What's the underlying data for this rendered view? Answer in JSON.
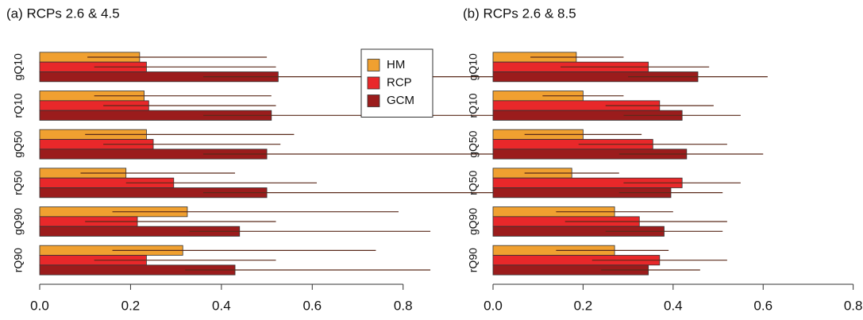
{
  "chart_data": [
    {
      "type": "bar",
      "orientation": "horizontal",
      "title": "(a) RCPs 2.6 & 4.5",
      "categories": [
        "gQ10",
        "rQ10",
        "gQ50",
        "rQ50",
        "gQ90",
        "rQ90"
      ],
      "series": [
        {
          "name": "HM",
          "color": "#f0a030",
          "values": [
            0.22,
            0.23,
            0.235,
            0.19,
            0.325,
            0.315
          ],
          "low": [
            0.105,
            0.12,
            0.1,
            0.09,
            0.16,
            0.16
          ],
          "high": [
            0.5,
            0.51,
            0.56,
            0.43,
            0.79,
            0.74
          ]
        },
        {
          "name": "RCP",
          "color": "#e8282a",
          "values": [
            0.235,
            0.24,
            0.25,
            0.295,
            0.215,
            0.235
          ],
          "low": [
            0.12,
            0.14,
            0.14,
            0.19,
            0.1,
            0.12
          ],
          "high": [
            0.52,
            0.52,
            0.53,
            0.61,
            0.52,
            0.52
          ]
        },
        {
          "name": "GCM",
          "color": "#9b1c1c",
          "values": [
            0.525,
            0.51,
            0.5,
            0.5,
            0.44,
            0.43
          ],
          "low": [
            0.36,
            0.36,
            0.36,
            0.36,
            0.33,
            0.32
          ],
          "high": [
            1.12,
            1.09,
            1.04,
            1.03,
            0.86,
            0.86
          ]
        }
      ],
      "error_color": "#5a2a1a",
      "xlim": [
        0,
        1.15
      ],
      "xticks": [
        {
          "value": 0,
          "label": "0.0"
        },
        {
          "value": 0.2,
          "label": "0.2"
        },
        {
          "value": 0.4,
          "label": "0.4"
        },
        {
          "value": 0.6,
          "label": "0.6"
        },
        {
          "value": 0.8,
          "label": "0.8"
        }
      ],
      "legend": "topright"
    },
    {
      "type": "bar",
      "orientation": "horizontal",
      "title": "(b) RCPs 2.6 & 8.5",
      "categories": [
        "gQ10",
        "rQ10",
        "gQ50",
        "rQ50",
        "gQ90",
        "rQ90"
      ],
      "series": [
        {
          "color": "#f0a030",
          "values": [
            0.185,
            0.2,
            0.2,
            0.175,
            0.27,
            0.27
          ],
          "low": [
            0.083,
            0.11,
            0.07,
            0.07,
            0.14,
            0.14
          ],
          "high": [
            0.29,
            0.29,
            0.33,
            0.28,
            0.4,
            0.39
          ]
        },
        {
          "color": "#e8282a",
          "values": [
            0.345,
            0.37,
            0.355,
            0.42,
            0.325,
            0.37
          ],
          "low": [
            0.15,
            0.25,
            0.19,
            0.29,
            0.16,
            0.22
          ],
          "high": [
            0.48,
            0.49,
            0.52,
            0.55,
            0.52,
            0.52
          ]
        },
        {
          "color": "#9b1c1c",
          "values": [
            0.455,
            0.42,
            0.43,
            0.395,
            0.38,
            0.345
          ],
          "low": [
            0.3,
            0.29,
            0.28,
            0.28,
            0.25,
            0.24
          ],
          "high": [
            0.61,
            0.55,
            0.6,
            0.51,
            0.51,
            0.46
          ]
        }
      ],
      "error_color": "#5a2a1a",
      "xlim": [
        0,
        0.82
      ],
      "xticks": [
        {
          "value": 0,
          "label": "0.0"
        },
        {
          "value": 0.2,
          "label": "0.2"
        },
        {
          "value": 0.4,
          "label": "0.4"
        },
        {
          "value": 0.6,
          "label": "0.6"
        },
        {
          "value": 0.8,
          "label": "0.8"
        }
      ]
    }
  ]
}
